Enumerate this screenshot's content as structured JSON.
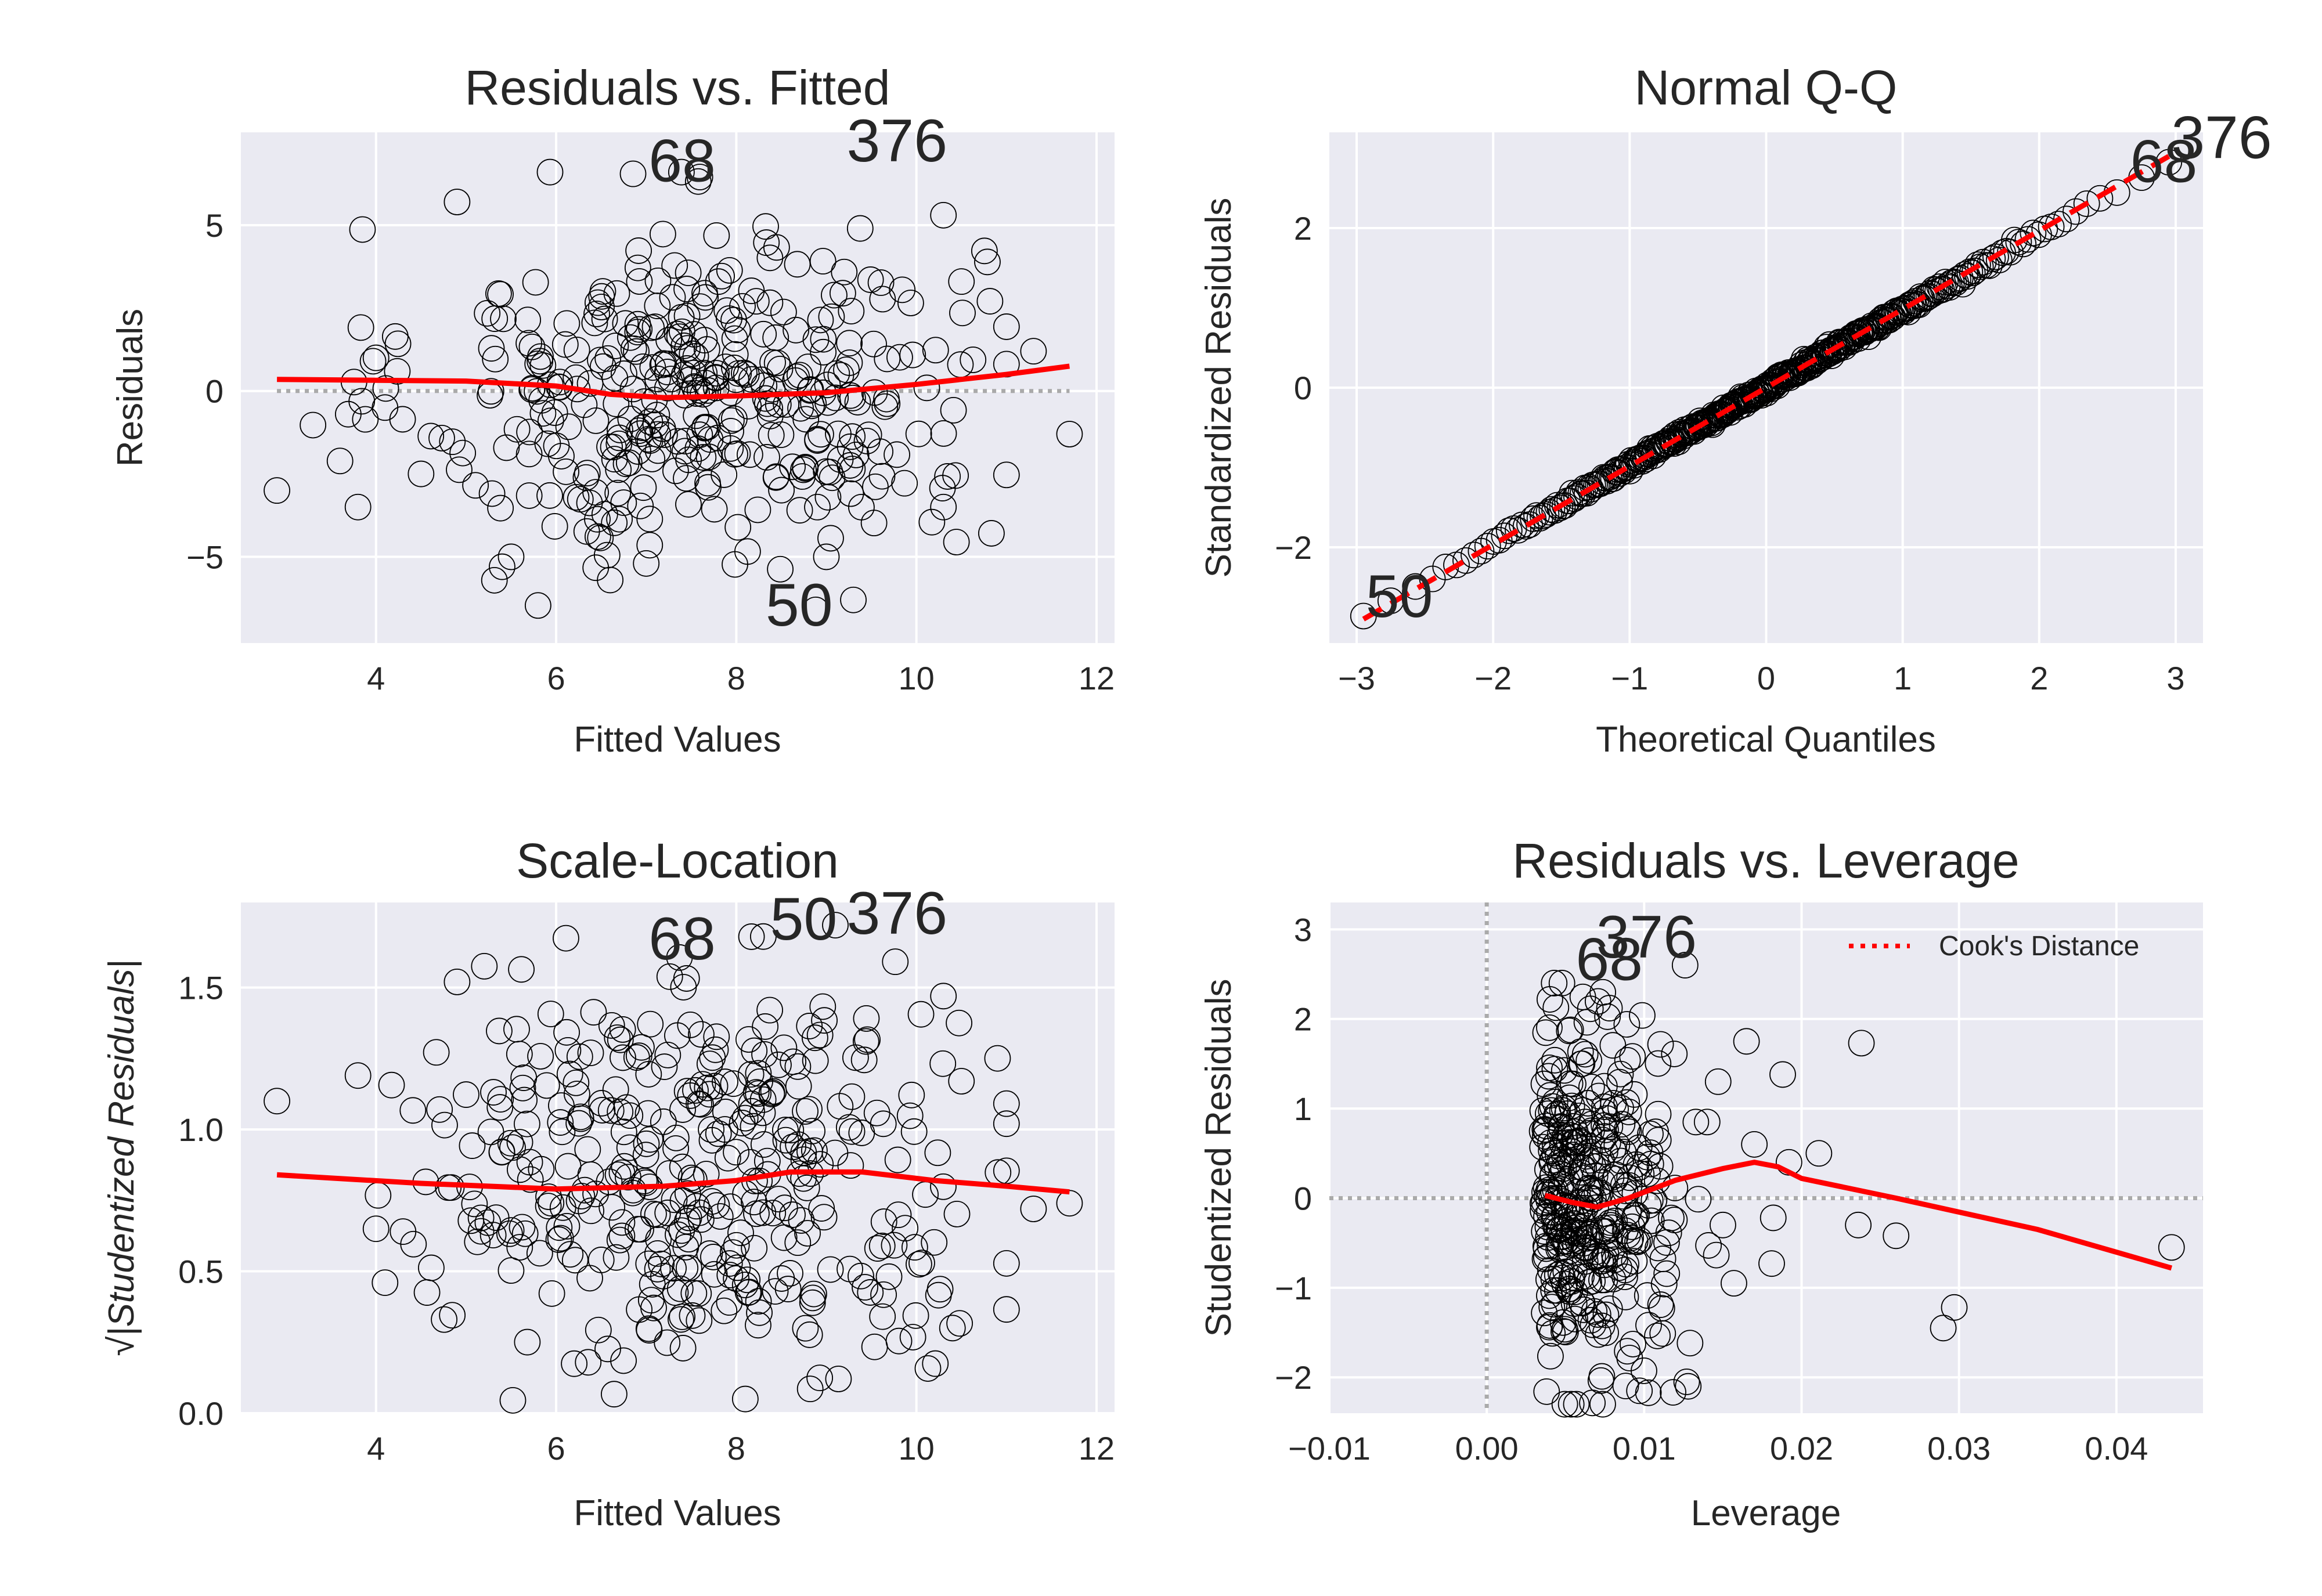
{
  "figure": {
    "background": "#ffffff",
    "plot_background": "#eaeaf2",
    "grid_color": "#ffffff",
    "smooth_color": "#ff0000",
    "point_color": "#000000"
  },
  "chart_data": [
    {
      "id": "resid-fitted",
      "type": "scatter",
      "title": "Residuals vs. Fitted",
      "xlabel": "Fitted Values",
      "ylabel": "Residuals",
      "xlim": [
        2.5,
        12.2
      ],
      "ylim": [
        -7.6,
        7.8
      ],
      "xticks": [
        4,
        6,
        8,
        10,
        12
      ],
      "xtick_labels": [
        "4",
        "6",
        "8",
        "10",
        "12"
      ],
      "yticks": [
        -5,
        0,
        5
      ],
      "ytick_labels": [
        "−5",
        "0",
        "5"
      ],
      "grid": true,
      "reference_hline": 0,
      "points": {
        "count": 400,
        "x_center": 7.6,
        "x_spread": 1.55,
        "y_center": 0,
        "y_spread": 2.5,
        "explicit": [
          [
            2.9,
            -3.0
          ],
          [
            3.8,
            -3.5
          ],
          [
            4.0,
            1.0
          ],
          [
            4.1,
            -0.5
          ],
          [
            4.5,
            -2.5
          ],
          [
            4.9,
            5.7
          ],
          [
            11.3,
            1.2
          ],
          [
            11.7,
            -1.3
          ],
          [
            10.3,
            5.3
          ],
          [
            10.3,
            -3.5
          ],
          [
            10.5,
            3.3
          ],
          [
            9.3,
            -6.3
          ],
          [
            5.4,
            -5.3
          ],
          [
            5.5,
            -5.0
          ],
          [
            9.0,
            -5.0
          ],
          [
            6.6,
            -5.7
          ],
          [
            7.0,
            -5.2
          ]
        ]
      },
      "smooth": {
        "x": [
          2.9,
          5.0,
          6.0,
          6.6,
          7.2,
          8.0,
          9.0,
          10.0,
          11.0,
          11.7
        ],
        "y": [
          0.35,
          0.3,
          0.15,
          -0.1,
          -0.2,
          -0.15,
          -0.05,
          0.2,
          0.5,
          0.75
        ]
      },
      "annotations": [
        {
          "label": "68",
          "x": 7.0,
          "y": 6.5
        },
        {
          "label": "376",
          "x": 9.2,
          "y": 7.1
        },
        {
          "label": "50",
          "x": 8.3,
          "y": -6.9
        }
      ]
    },
    {
      "id": "normal-qq",
      "type": "scatter",
      "title": "Normal Q-Q",
      "xlabel": "Theoretical Quantiles",
      "ylabel": "Standardized Residuals",
      "xlim": [
        -3.2,
        3.2
      ],
      "ylim": [
        -3.2,
        3.2
      ],
      "xticks": [
        -3,
        -2,
        -1,
        0,
        1,
        2,
        3
      ],
      "xtick_labels": [
        "−3",
        "−2",
        "−1",
        "0",
        "1",
        "2",
        "3"
      ],
      "yticks": [
        -2,
        0,
        2
      ],
      "ytick_labels": [
        "−2",
        "0",
        "2"
      ],
      "grid": true,
      "points": {
        "count": 400,
        "slope": 0.97,
        "intercept": 0
      },
      "reference_line": {
        "x": [
          -2.95,
          2.95
        ],
        "y": [
          -2.9,
          2.9
        ],
        "style": "dashed"
      },
      "annotations": [
        {
          "label": "50",
          "x": -2.95,
          "y": -2.8
        },
        {
          "label": "68",
          "x": 2.65,
          "y": 2.65
        },
        {
          "label": "376",
          "x": 2.95,
          "y": 2.95
        }
      ]
    },
    {
      "id": "scale-location",
      "type": "scatter",
      "title": "Scale-Location",
      "xlabel": "Fitted Values",
      "ylabel": "√|Studentized Residuals|",
      "xlim": [
        2.5,
        12.2
      ],
      "ylim": [
        0.0,
        1.8
      ],
      "xticks": [
        4,
        6,
        8,
        10,
        12
      ],
      "xtick_labels": [
        "4",
        "6",
        "8",
        "10",
        "12"
      ],
      "yticks": [
        0.0,
        0.5,
        1.0,
        1.5
      ],
      "ytick_labels": [
        "0.0",
        "0.5",
        "1.0",
        "1.5"
      ],
      "grid": true,
      "points": {
        "count": 400,
        "x_center": 7.6,
        "x_spread": 1.55,
        "explicit": [
          [
            2.9,
            1.1
          ],
          [
            3.8,
            1.19
          ],
          [
            4.0,
            0.65
          ],
          [
            4.1,
            0.46
          ],
          [
            4.3,
            0.64
          ],
          [
            11.3,
            0.72
          ],
          [
            11.7,
            0.74
          ],
          [
            10.3,
            1.47
          ],
          [
            10.5,
            1.17
          ],
          [
            10.4,
            0.3
          ],
          [
            4.9,
            1.52
          ],
          [
            8.3,
            1.68
          ],
          [
            9.1,
            1.72
          ],
          [
            8.1,
            0.05
          ]
        ]
      },
      "smooth": {
        "x": [
          2.9,
          4.5,
          6.0,
          7.2,
          8.0,
          8.6,
          9.4,
          10.2,
          11.0,
          11.7
        ],
        "y": [
          0.84,
          0.81,
          0.79,
          0.8,
          0.82,
          0.85,
          0.85,
          0.82,
          0.8,
          0.78
        ]
      },
      "annotations": [
        {
          "label": "68",
          "x": 7.0,
          "y": 1.62
        },
        {
          "label": "50",
          "x": 8.35,
          "y": 1.69
        },
        {
          "label": "376",
          "x": 9.2,
          "y": 1.71
        }
      ]
    },
    {
      "id": "resid-leverage",
      "type": "scatter",
      "title": "Residuals vs. Leverage",
      "xlabel": "Leverage",
      "ylabel": "Studentized Residuals",
      "xlim": [
        -0.01,
        0.0455
      ],
      "ylim": [
        -2.4,
        3.3
      ],
      "xticks": [
        -0.01,
        0.0,
        0.01,
        0.02,
        0.03,
        0.04
      ],
      "xtick_labels": [
        "−0.01",
        "0.00",
        "0.01",
        "0.02",
        "0.03",
        "0.04"
      ],
      "yticks": [
        -2,
        -1,
        0,
        1,
        2,
        3
      ],
      "ytick_labels": [
        "−2",
        "−1",
        "0",
        "1",
        "2",
        "3"
      ],
      "grid": true,
      "reference_hline": 0,
      "reference_vline": 0,
      "points": {
        "count": 400,
        "explicit": [
          [
            0.0435,
            -0.55
          ],
          [
            0.029,
            -1.45
          ],
          [
            0.0297,
            -1.22
          ],
          [
            0.026,
            -0.42
          ],
          [
            0.0236,
            -0.3
          ],
          [
            0.0238,
            1.73
          ],
          [
            0.0211,
            0.5
          ],
          [
            0.0192,
            0.4
          ],
          [
            0.0188,
            1.38
          ],
          [
            0.0182,
            -0.22
          ],
          [
            0.0181,
            -0.73
          ],
          [
            0.017,
            0.6
          ],
          [
            0.0165,
            1.75
          ],
          [
            0.0157,
            -0.95
          ],
          [
            0.015,
            -0.3
          ],
          [
            0.0147,
            1.3
          ],
          [
            0.014,
            0.85
          ],
          [
            0.0126,
            2.6
          ],
          [
            0.0127,
            -2.05
          ],
          [
            0.0128,
            -2.1
          ],
          [
            0.0097,
            -2.15
          ]
        ]
      },
      "smooth": {
        "x": [
          0.0037,
          0.0055,
          0.007,
          0.009,
          0.012,
          0.015,
          0.017,
          0.0185,
          0.02,
          0.026,
          0.035,
          0.0435
        ],
        "y": [
          0.03,
          -0.05,
          -0.1,
          0.0,
          0.2,
          0.33,
          0.4,
          0.35,
          0.22,
          0.0,
          -0.35,
          -0.78
        ]
      },
      "legend": {
        "entries": [
          "Cook's Distance"
        ],
        "placement": "top-right",
        "line_style": "dotted"
      },
      "annotations": [
        {
          "label": "68",
          "x": 0.0055,
          "y": 2.5
        },
        {
          "label": "376",
          "x": 0.0068,
          "y": 2.75
        }
      ]
    }
  ]
}
